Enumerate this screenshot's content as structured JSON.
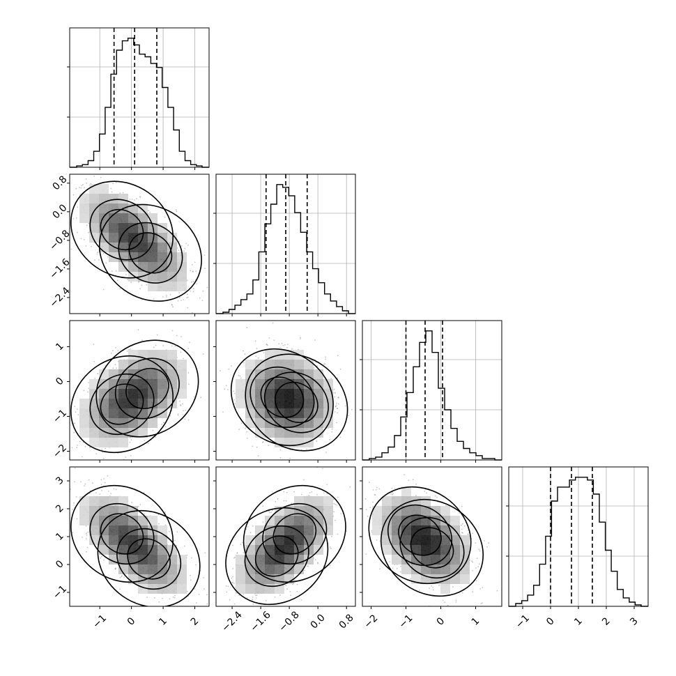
{
  "chart_data": {
    "type": "corner",
    "parameters": [
      {
        "id": "p0",
        "range": [
          -1.95,
          2.45
        ],
        "ticks": [
          -1,
          0,
          1,
          2
        ],
        "tick_labels": [
          "−1",
          "0",
          "1",
          "2"
        ],
        "quantiles": [
          -0.55,
          0.1,
          0.8
        ],
        "hist_bins": [
          -1.95,
          1.7,
          0.1,
          110,
          0.2
        ]
      },
      {
        "id": "p1",
        "range": [
          -2.85,
          1.05
        ],
        "ticks": [
          -2.4,
          -1.6,
          -0.8,
          0.0,
          0.8
        ],
        "tick_labels": [
          "−2.4",
          "−1.6",
          "−0.8",
          "0.0",
          "0.8"
        ],
        "quantiles": [
          -1.45,
          -0.9,
          -0.3
        ],
        "hist_bins": [
          -2.85,
          1.2,
          -0.9,
          85,
          0.2
        ]
      },
      {
        "id": "p2",
        "range": [
          -2.25,
          1.75
        ],
        "ticks": [
          -2,
          -1,
          0,
          1
        ],
        "tick_labels": [
          "−2",
          "−1",
          "0",
          "1"
        ],
        "quantiles": [
          -1.0,
          -0.45,
          0.05
        ],
        "hist_bins": [
          -2.25,
          1.75,
          -0.45,
          90,
          0.2
        ]
      },
      {
        "id": "p3",
        "range": [
          -1.5,
          3.5
        ],
        "ticks": [
          -1,
          0,
          1,
          2,
          3
        ],
        "tick_labels": [
          "−1",
          "0",
          "1",
          "2",
          "3"
        ],
        "quantiles": [
          0.0,
          0.75,
          1.5
        ],
        "hist_bins": [
          -1.5,
          3.3,
          0.75,
          120,
          0.25
        ]
      }
    ],
    "histograms": [
      [
        1,
        2,
        5,
        12,
        25,
        45,
        70,
        88,
        95,
        97,
        92,
        85,
        83,
        78,
        75,
        60,
        45,
        28,
        12,
        5,
        2,
        1
      ],
      [
        1,
        3,
        6,
        10,
        14,
        24,
        44,
        64,
        78,
        92,
        90,
        84,
        72,
        58,
        44,
        32,
        22,
        14,
        9,
        5,
        2
      ],
      [
        1,
        2,
        5,
        9,
        17,
        30,
        47,
        65,
        82,
        90,
        75,
        50,
        35,
        22,
        13,
        8,
        5,
        3,
        1,
        1
      ],
      [
        2,
        4,
        8,
        15,
        30,
        50,
        75,
        85,
        85,
        90,
        92,
        92,
        90,
        80,
        60,
        40,
        25,
        12,
        6,
        3,
        1
      ]
    ],
    "pairs": [
      {
        "row": 1,
        "col": 0,
        "correlation": -0.55,
        "modes": [
          {
            "x": -0.3,
            "y": -0.5,
            "weight": 0.55
          },
          {
            "x": 0.6,
            "y": -1.15,
            "weight": 0.45
          }
        ]
      },
      {
        "row": 2,
        "col": 0,
        "correlation": 0.35,
        "modes": [
          {
            "x": -0.3,
            "y": -0.65,
            "weight": 0.55
          },
          {
            "x": 0.5,
            "y": -0.2,
            "weight": 0.45
          }
        ]
      },
      {
        "row": 2,
        "col": 1,
        "correlation": -0.1,
        "modes": [
          {
            "x": -1.0,
            "y": -0.45,
            "weight": 0.6
          },
          {
            "x": -0.6,
            "y": -0.6,
            "weight": 0.4
          }
        ]
      },
      {
        "row": 3,
        "col": 0,
        "correlation": -0.55,
        "modes": [
          {
            "x": -0.3,
            "y": 1.1,
            "weight": 0.55
          },
          {
            "x": 0.55,
            "y": 0.2,
            "weight": 0.45
          }
        ]
      },
      {
        "row": 3,
        "col": 1,
        "correlation": 0.55,
        "modes": [
          {
            "x": -1.15,
            "y": 0.3,
            "weight": 0.55
          },
          {
            "x": -0.65,
            "y": 1.1,
            "weight": 0.45
          }
        ]
      },
      {
        "row": 3,
        "col": 2,
        "correlation": -0.4,
        "modes": [
          {
            "x": -0.6,
            "y": 1.05,
            "weight": 0.6
          },
          {
            "x": -0.25,
            "y": 0.6,
            "weight": 0.4
          }
        ]
      }
    ],
    "contour_levels": [
      "1-sigma",
      "1.5-sigma",
      "2-sigma"
    ],
    "grid": true,
    "title": "",
    "xlabel": "",
    "ylabel": ""
  }
}
